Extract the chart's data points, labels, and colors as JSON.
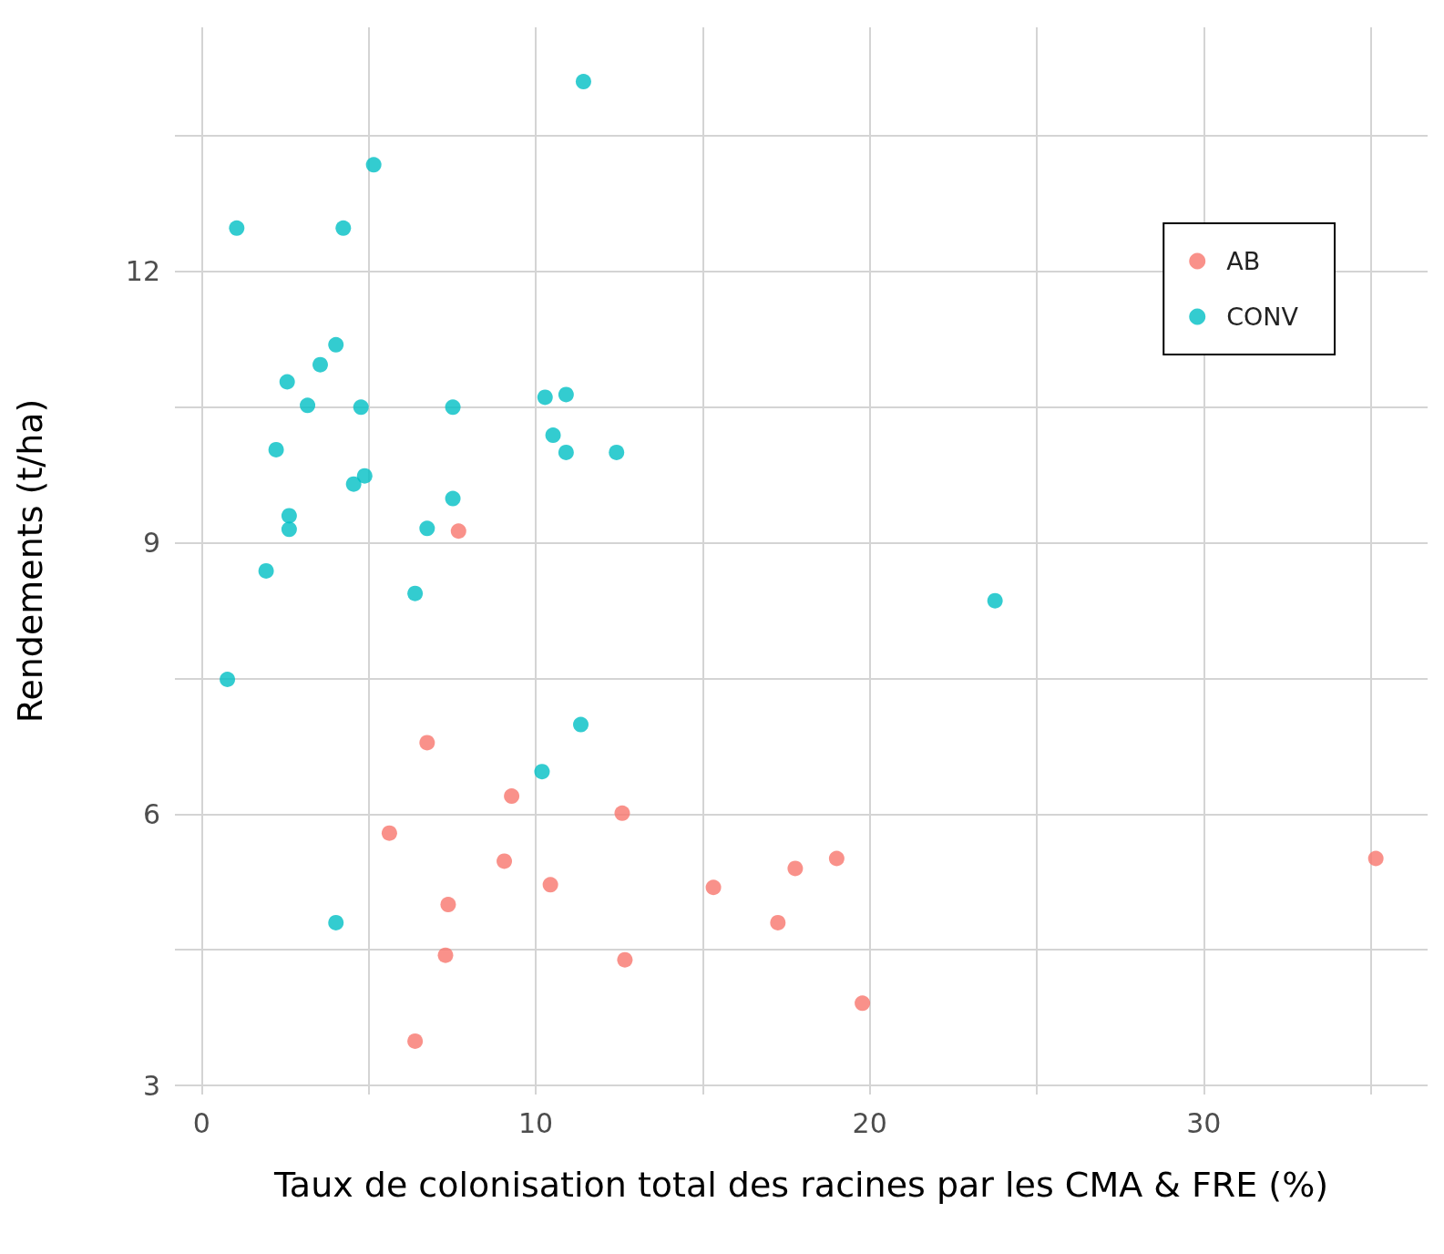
{
  "chart_data": {
    "type": "scatter",
    "xlabel": "Taux de colonisation total des racines par les CMA & FRE (%)",
    "ylabel": "Rendements (t/ha)",
    "xlim": [
      -0.8,
      36.7
    ],
    "ylim": [
      2.9,
      14.7
    ],
    "xticks": [
      0,
      {
        "value": 5,
        "label": null
      },
      10,
      {
        "value": 15,
        "label": null
      },
      20,
      {
        "value": 25,
        "label": null
      },
      30,
      {
        "value": 35,
        "label": null
      }
    ],
    "yticks": [
      3,
      {
        "value": 4.5,
        "label": null
      },
      6,
      {
        "value": 7.5,
        "label": null
      },
      9,
      {
        "value": 10.5,
        "label": null
      },
      12,
      {
        "value": 13.5,
        "label": null
      }
    ],
    "grid": true,
    "legend": "top right",
    "marker": "circle",
    "series": [
      {
        "name": "AB",
        "color": "#f8766d",
        "x": [
          7.69,
          6.75,
          9.28,
          12.59,
          5.62,
          9.06,
          19.01,
          35.15,
          17.77,
          10.44,
          15.32,
          7.38,
          17.25,
          7.3,
          12.67,
          19.78,
          6.39
        ],
        "values": [
          9.13,
          6.79,
          6.2,
          6.01,
          5.79,
          5.48,
          5.51,
          5.51,
          5.4,
          5.22,
          5.19,
          5.0,
          4.8,
          4.44,
          4.39,
          3.91,
          3.49
        ]
      },
      {
        "name": "CONV",
        "color": "#00bfc4",
        "x": [
          11.43,
          5.15,
          1.05,
          4.24,
          4.02,
          3.55,
          2.56,
          3.17,
          4.77,
          7.52,
          10.28,
          10.91,
          10.52,
          10.91,
          12.42,
          2.23,
          4.55,
          4.88,
          7.52,
          2.62,
          2.62,
          6.75,
          1.93,
          6.39,
          23.75,
          0.77,
          11.35,
          10.19,
          4.02
        ],
        "values": [
          14.1,
          13.18,
          12.48,
          12.48,
          11.19,
          10.97,
          10.78,
          10.52,
          10.5,
          10.5,
          10.61,
          10.64,
          10.19,
          10.0,
          10.0,
          10.03,
          9.65,
          9.74,
          9.49,
          9.3,
          9.15,
          9.16,
          8.69,
          8.44,
          8.36,
          7.49,
          6.99,
          6.47,
          4.8
        ]
      }
    ]
  }
}
